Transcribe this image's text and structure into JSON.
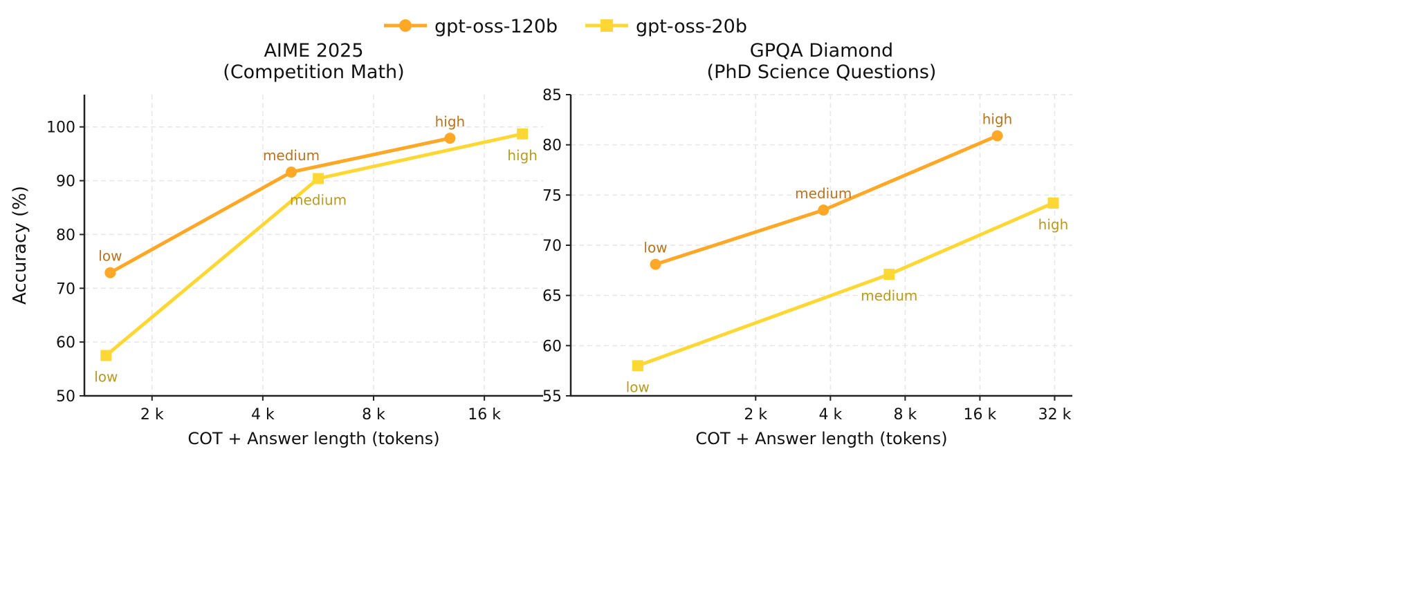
{
  "legend": {
    "placement": "top-center",
    "items": [
      {
        "name": "gpt-oss-120b",
        "color": "#FFA726",
        "marker": "circle"
      },
      {
        "name": "gpt-oss-20b",
        "color": "#FDD835",
        "marker": "square"
      }
    ]
  },
  "label_colors": {
    "gpt-oss-120b": "#B8731C",
    "gpt-oss-20b": "#B89A1C"
  },
  "chart_data": [
    {
      "type": "line",
      "title": "AIME 2025",
      "subtitle": "(Competition Math)",
      "xlabel": "COT + Answer length (tokens)",
      "ylabel": "Accuracy (%)",
      "xscale": "log2",
      "xlim": [
        1310,
        23100
      ],
      "ylim": [
        50,
        106
      ],
      "xticks": [
        {
          "v": 2000,
          "label": "2 k"
        },
        {
          "v": 4000,
          "label": "4 k"
        },
        {
          "v": 8000,
          "label": "8 k"
        },
        {
          "v": 16000,
          "label": "16 k"
        }
      ],
      "yticks": [
        {
          "v": 50,
          "label": "50"
        },
        {
          "v": 60,
          "label": "60"
        },
        {
          "v": 70,
          "label": "70"
        },
        {
          "v": 80,
          "label": "80"
        },
        {
          "v": 90,
          "label": "90"
        },
        {
          "v": 100,
          "label": "100"
        }
      ],
      "grid": true,
      "series": [
        {
          "name": "gpt-oss-120b",
          "points": [
            {
              "x": 1540,
              "y": 72.9,
              "label": "low"
            },
            {
              "x": 4780,
              "y": 91.6,
              "label": "medium"
            },
            {
              "x": 12900,
              "y": 97.9,
              "label": "high"
            }
          ]
        },
        {
          "name": "gpt-oss-20b",
          "points": [
            {
              "x": 1500,
              "y": 57.5,
              "label": "low"
            },
            {
              "x": 5660,
              "y": 90.4,
              "label": "medium"
            },
            {
              "x": 20300,
              "y": 98.7,
              "label": "high"
            }
          ]
        }
      ]
    },
    {
      "type": "line",
      "title": "GPQA Diamond",
      "subtitle": "(PhD Science Questions)",
      "xlabel": "COT + Answer length (tokens)",
      "ylabel": "",
      "xscale": "log2",
      "xlim": [
        360,
        37700
      ],
      "ylim": [
        55,
        85
      ],
      "xticks": [
        {
          "v": 2000,
          "label": "2 k"
        },
        {
          "v": 4000,
          "label": "4 k"
        },
        {
          "v": 8000,
          "label": "8 k"
        },
        {
          "v": 16000,
          "label": "16 k"
        },
        {
          "v": 32000,
          "label": "32 k"
        }
      ],
      "yticks": [
        {
          "v": 55,
          "label": "55"
        },
        {
          "v": 60,
          "label": "60"
        },
        {
          "v": 65,
          "label": "65"
        },
        {
          "v": 70,
          "label": "70"
        },
        {
          "v": 75,
          "label": "75"
        },
        {
          "v": 80,
          "label": "80"
        },
        {
          "v": 85,
          "label": "85"
        }
      ],
      "grid": true,
      "series": [
        {
          "name": "gpt-oss-120b",
          "points": [
            {
              "x": 790,
              "y": 68.1,
              "label": "low"
            },
            {
              "x": 3750,
              "y": 73.5,
              "label": "medium"
            },
            {
              "x": 18800,
              "y": 80.9,
              "label": "high"
            }
          ]
        },
        {
          "name": "gpt-oss-20b",
          "points": [
            {
              "x": 670,
              "y": 58.0,
              "label": "low"
            },
            {
              "x": 6900,
              "y": 67.1,
              "label": "medium"
            },
            {
              "x": 31600,
              "y": 74.2,
              "label": "high"
            }
          ]
        }
      ]
    }
  ]
}
